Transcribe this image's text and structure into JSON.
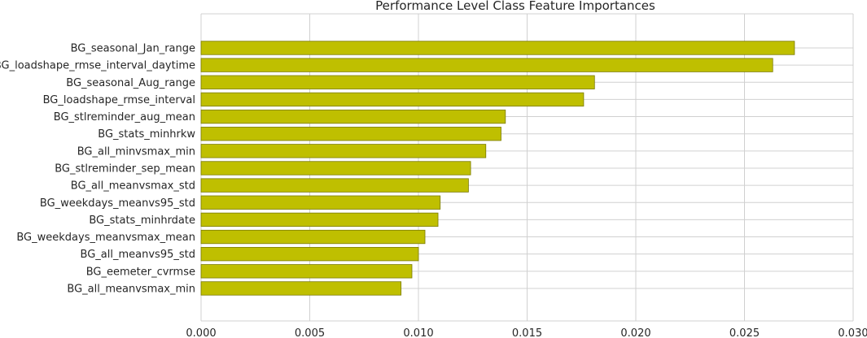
{
  "chart_data": {
    "type": "bar",
    "orientation": "horizontal",
    "title": "Performance Level Class Feature Importances",
    "xlabel": "",
    "ylabel": "",
    "xlim": [
      0.0,
      0.03
    ],
    "xticks": [
      "0.000",
      "0.005",
      "0.010",
      "0.015",
      "0.020",
      "0.025",
      "0.030"
    ],
    "grid": true,
    "bar_color": "#bfbf00",
    "bar_edge_color": "#7a7a00",
    "categories": [
      "BG_seasonal_Jan_range",
      "BG_loadshape_rmse_interval_daytime",
      "BG_seasonal_Aug_range",
      "BG_loadshape_rmse_interval",
      "BG_stlreminder_aug_mean",
      "BG_stats_minhrkw",
      "BG_all_minvsmax_min",
      "BG_stlreminder_sep_mean",
      "BG_all_meanvsmax_std",
      "BG_weekdays_meanvs95_std",
      "BG_stats_minhrdate",
      "BG_weekdays_meanvsmax_mean",
      "BG_all_meanvs95_std",
      "BG_eemeter_cvrmse",
      "BG_all_meanvsmax_min"
    ],
    "values": [
      0.0273,
      0.0263,
      0.0181,
      0.0176,
      0.014,
      0.0138,
      0.0131,
      0.0124,
      0.0123,
      0.011,
      0.0109,
      0.0103,
      0.01,
      0.0097,
      0.0092
    ]
  }
}
